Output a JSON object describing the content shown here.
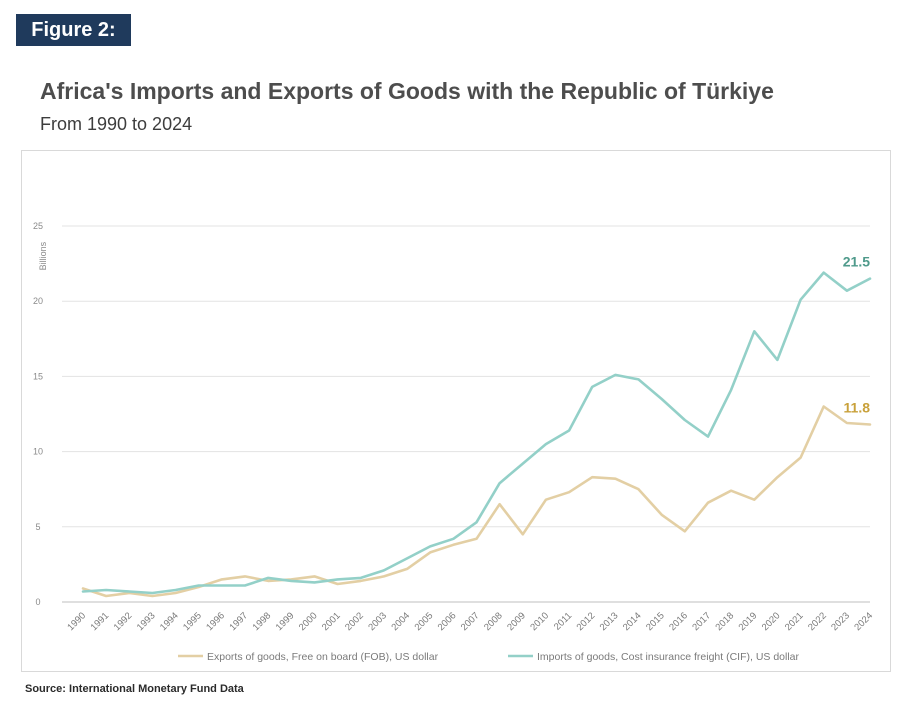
{
  "figure_label": "Figure 2:",
  "title": "Africa's Imports and Exports of Goods with the Republic of Türkiye",
  "subtitle": "From 1990 to 2024",
  "source": "Source: International Monetary Fund Data",
  "chart_data": {
    "type": "line",
    "title": "",
    "xlabel": "",
    "ylabel": "Billions",
    "ylim": [
      0,
      25
    ],
    "yticks": [
      0,
      5,
      10,
      15,
      20,
      25
    ],
    "grid": true,
    "legend_position": "bottom",
    "x": [
      "1990",
      "1991",
      "1992",
      "1993",
      "1994",
      "1995",
      "1996",
      "1997",
      "1998",
      "1999",
      "2000",
      "2001",
      "2002",
      "2003",
      "2004",
      "2005",
      "2006",
      "2007",
      "2008",
      "2009",
      "2010",
      "2011",
      "2012",
      "2013",
      "2014",
      "2015",
      "2016",
      "2017",
      "2018",
      "2019",
      "2020",
      "2021",
      "2022",
      "2023",
      "2024"
    ],
    "series": [
      {
        "name": "Exports of goods, Free on board (FOB), US dollar",
        "color": "#e3cfa4",
        "end_label": "11.8",
        "end_label_color": "#c9a13b",
        "values": [
          0.9,
          0.4,
          0.6,
          0.4,
          0.6,
          1.0,
          1.5,
          1.7,
          1.4,
          1.5,
          1.7,
          1.2,
          1.4,
          1.7,
          2.2,
          3.3,
          3.8,
          4.2,
          6.5,
          4.5,
          6.8,
          7.3,
          8.3,
          8.2,
          7.5,
          5.8,
          4.7,
          6.6,
          7.4,
          6.8,
          8.3,
          9.6,
          13.0,
          11.9,
          11.8
        ]
      },
      {
        "name": "Imports of goods, Cost insurance freight (CIF), US dollar",
        "color": "#93d0c8",
        "end_label": "21.5",
        "end_label_color": "#4f9a8b",
        "values": [
          0.7,
          0.8,
          0.7,
          0.6,
          0.8,
          1.1,
          1.1,
          1.1,
          1.6,
          1.4,
          1.3,
          1.5,
          1.6,
          2.1,
          2.9,
          3.7,
          4.2,
          5.3,
          7.9,
          9.2,
          10.5,
          11.4,
          14.3,
          15.1,
          14.8,
          13.5,
          12.1,
          11.0,
          14.1,
          18.0,
          16.1,
          20.1,
          21.9,
          20.7,
          21.5
        ]
      }
    ]
  }
}
